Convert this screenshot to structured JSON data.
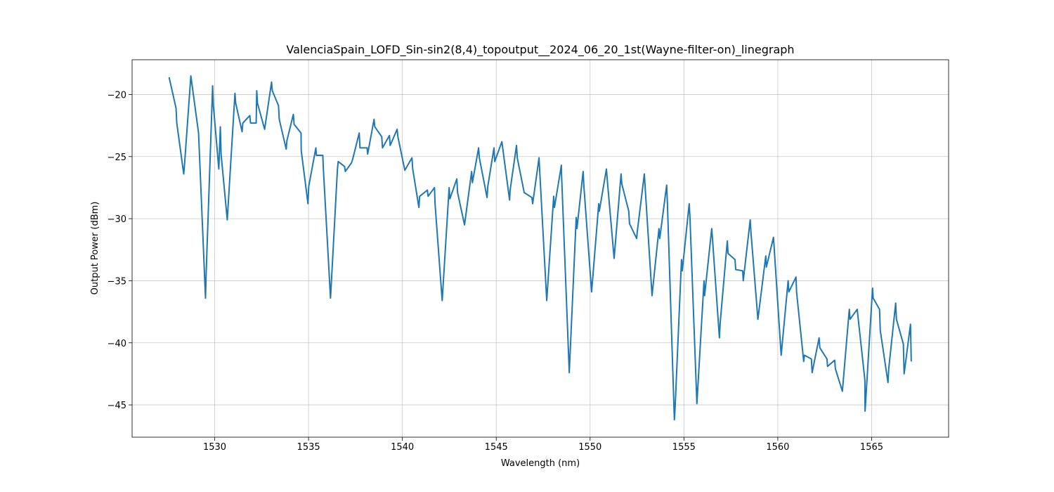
{
  "chart_data": {
    "type": "line",
    "title": "ValenciaSpain_LOFD_Sin-sin2(8,4)_topoutput__2024_06_20_1st(Wayne-filter-on)_linegraph",
    "x_label": "Wavelength (nm)",
    "y_label": "Output Power (dBm)",
    "xlim": [
      1525.6,
      1569.1
    ],
    "ylim": [
      -47.6,
      -17.2
    ],
    "xticks": [
      1530,
      1535,
      1540,
      1545,
      1550,
      1555,
      1560,
      1565
    ],
    "yticks": [
      {
        "value": -45,
        "label": "−45"
      },
      {
        "value": -40,
        "label": "−40"
      },
      {
        "value": -35,
        "label": "−35"
      },
      {
        "value": -30,
        "label": "−30"
      },
      {
        "value": -25,
        "label": "−25"
      },
      {
        "value": -20,
        "label": "−20"
      }
    ],
    "grid": true,
    "series": [
      {
        "color": "#1f77b4",
        "x": [
          1527.57,
          1527.94,
          1527.98,
          1528.35,
          1528.39,
          1528.73,
          1529.14,
          1529.18,
          1529.51,
          1529.55,
          1529.89,
          1529.93,
          1530.22,
          1530.3,
          1530.34,
          1530.67,
          1531.08,
          1531.12,
          1531.46,
          1531.5,
          1531.87,
          1531.91,
          1532.21,
          1532.24,
          1532.28,
          1532.66,
          1533.03,
          1533.07,
          1533.4,
          1533.44,
          1533.81,
          1533.85,
          1534.19,
          1534.23,
          1534.6,
          1534.61,
          1534.97,
          1535.01,
          1535.39,
          1535.42,
          1535.76,
          1535.79,
          1536.17,
          1536.21,
          1536.54,
          1536.58,
          1536.92,
          1536.96,
          1537.29,
          1537.37,
          1537.7,
          1537.74,
          1538.12,
          1538.15,
          1538.49,
          1538.53,
          1538.9,
          1538.94,
          1539.31,
          1539.35,
          1539.72,
          1539.76,
          1540.13,
          1540.51,
          1540.55,
          1540.88,
          1540.92,
          1541.33,
          1541.37,
          1541.71,
          1541.74,
          1542.12,
          1542.49,
          1542.53,
          1542.9,
          1542.94,
          1543.31,
          1543.69,
          1543.73,
          1544.06,
          1544.1,
          1544.51,
          1544.55,
          1544.88,
          1544.92,
          1545.3,
          1545.71,
          1545.74,
          1546.08,
          1546.12,
          1546.49,
          1546.9,
          1546.94,
          1547.28,
          1547.31,
          1547.69,
          1548.06,
          1548.1,
          1548.47,
          1548.48,
          1548.89,
          1549.26,
          1549.3,
          1549.63,
          1549.67,
          1550.08,
          1550.46,
          1550.49,
          1550.87,
          1550.91,
          1551.28,
          1551.65,
          1551.69,
          1552.06,
          1552.1,
          1552.48,
          1552.51,
          1552.89,
          1552.93,
          1553.3,
          1553.67,
          1553.71,
          1554.08,
          1554.12,
          1554.49,
          1554.53,
          1554.87,
          1554.91,
          1555.28,
          1555.32,
          1555.69,
          1556.07,
          1556.1,
          1556.48,
          1556.52,
          1556.89,
          1556.93,
          1557.31,
          1557.35,
          1557.72,
          1557.76,
          1558.13,
          1558.16,
          1558.53,
          1558.57,
          1558.94,
          1559.36,
          1559.39,
          1559.77,
          1560.18,
          1560.55,
          1560.59,
          1560.97,
          1561.0,
          1561.38,
          1561.42,
          1561.79,
          1561.83,
          1562.2,
          1562.24,
          1562.62,
          1562.65,
          1563.03,
          1563.07,
          1563.44,
          1563.48,
          1563.81,
          1563.85,
          1564.23,
          1564.64,
          1564.65,
          1565.05,
          1565.08,
          1565.42,
          1565.46,
          1565.87,
          1565.91,
          1566.28,
          1566.32,
          1566.69,
          1566.73,
          1567.07,
          1567.11
        ],
        "values": [
          -18.6,
          -21.1,
          -22.3,
          -26.4,
          -25.7,
          -18.5,
          -23.1,
          -24.5,
          -36.4,
          -34.2,
          -19.3,
          -20.9,
          -26.0,
          -22.6,
          -24.8,
          -30.1,
          -19.9,
          -20.7,
          -23.0,
          -22.3,
          -21.7,
          -22.3,
          -22.3,
          -19.7,
          -20.7,
          -22.8,
          -19.0,
          -19.7,
          -20.9,
          -22.0,
          -24.4,
          -23.7,
          -21.6,
          -22.4,
          -23.1,
          -24.5,
          -28.8,
          -27.4,
          -24.3,
          -24.9,
          -24.9,
          -26.0,
          -36.4,
          -35.3,
          -26.0,
          -25.4,
          -25.8,
          -26.2,
          -25.5,
          -25.1,
          -23.1,
          -24.3,
          -24.3,
          -24.8,
          -22.0,
          -22.6,
          -23.4,
          -24.3,
          -23.3,
          -24.1,
          -22.8,
          -23.4,
          -26.1,
          -25.1,
          -26.0,
          -29.1,
          -28.2,
          -27.7,
          -28.2,
          -27.5,
          -28.8,
          -36.6,
          -27.5,
          -28.4,
          -26.8,
          -27.9,
          -30.5,
          -26.2,
          -27.1,
          -24.3,
          -25.1,
          -28.3,
          -27.4,
          -24.3,
          -25.4,
          -23.8,
          -28.5,
          -27.7,
          -24.1,
          -25.1,
          -27.9,
          -28.3,
          -28.8,
          -25.1,
          -26.0,
          -36.6,
          -28.2,
          -29.1,
          -25.7,
          -26.5,
          -42.4,
          -29.9,
          -30.8,
          -26.2,
          -27.4,
          -35.9,
          -28.8,
          -29.4,
          -26.0,
          -26.8,
          -33.2,
          -26.4,
          -27.2,
          -29.4,
          -30.4,
          -31.6,
          -31.1,
          -26.4,
          -27.4,
          -36.2,
          -30.8,
          -31.6,
          -27.3,
          -28.8,
          -46.2,
          -45.2,
          -33.3,
          -34.2,
          -28.8,
          -29.9,
          -44.9,
          -35.0,
          -36.2,
          -30.8,
          -31.6,
          -39.6,
          -38.4,
          -31.8,
          -32.8,
          -33.3,
          -34.1,
          -34.2,
          -35.0,
          -30.1,
          -31.1,
          -38.1,
          -33.0,
          -33.9,
          -31.5,
          -41.0,
          -35.0,
          -35.9,
          -34.7,
          -35.9,
          -41.5,
          -41.0,
          -41.3,
          -42.4,
          -39.6,
          -40.4,
          -41.3,
          -41.9,
          -41.4,
          -42.1,
          -43.9,
          -43.2,
          -37.3,
          -38.1,
          -37.3,
          -43.0,
          -45.5,
          -35.6,
          -36.4,
          -37.3,
          -39.0,
          -43.2,
          -42.1,
          -36.8,
          -38.1,
          -40.1,
          -42.5,
          -38.5,
          -41.5
        ]
      }
    ]
  }
}
